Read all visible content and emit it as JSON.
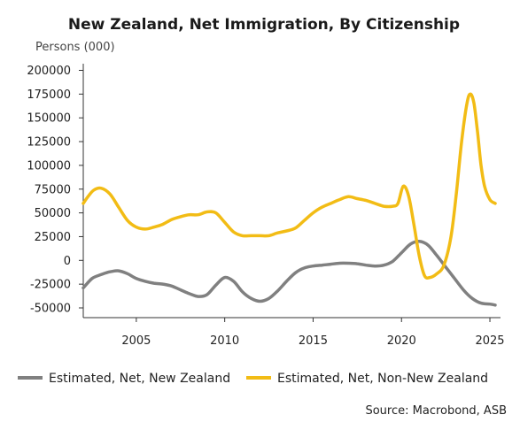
{
  "chart_data": {
    "type": "line",
    "title": "New Zealand, Net Immigration, By Citizenship",
    "ylabel": "Persons (000)",
    "xlabel": "",
    "ylim": [
      -50000,
      200000
    ],
    "xlim": [
      2002,
      2025.6
    ],
    "yticks": [
      200000,
      175000,
      150000,
      125000,
      100000,
      75000,
      50000,
      25000,
      0,
      -25000,
      -50000
    ],
    "xticks": [
      2005,
      2010,
      2015,
      2020,
      2025
    ],
    "grid": false,
    "legend_position": "bottom",
    "source": "Source: Macrobond, ASB",
    "series": [
      {
        "name": "Estimated, Net, New Zealand",
        "color": "#808080",
        "x": [
          2002.0,
          2002.5,
          2003.0,
          2003.5,
          2004.0,
          2004.5,
          2005.0,
          2005.5,
          2006.0,
          2006.5,
          2007.0,
          2007.5,
          2008.0,
          2008.5,
          2009.0,
          2009.5,
          2010.0,
          2010.5,
          2011.0,
          2011.5,
          2012.0,
          2012.5,
          2013.0,
          2013.5,
          2014.0,
          2014.5,
          2015.0,
          2015.5,
          2016.0,
          2016.5,
          2017.0,
          2017.5,
          2018.0,
          2018.5,
          2019.0,
          2019.5,
          2020.0,
          2020.5,
          2021.0,
          2021.5,
          2022.0,
          2022.5,
          2023.0,
          2023.5,
          2024.0,
          2024.5,
          2025.0,
          2025.3
        ],
        "y": [
          -29000,
          -19000,
          -15000,
          -12000,
          -11000,
          -14000,
          -19000,
          -22000,
          -24000,
          -25000,
          -27000,
          -31000,
          -35000,
          -38000,
          -36000,
          -26000,
          -18000,
          -22000,
          -33000,
          -40000,
          -43000,
          -40000,
          -32000,
          -22000,
          -13000,
          -8000,
          -6000,
          -5000,
          -4000,
          -3000,
          -3000,
          -3500,
          -5000,
          -6000,
          -5000,
          -1000,
          8000,
          17000,
          20000,
          16000,
          5000,
          -7000,
          -19000,
          -31000,
          -40000,
          -45000,
          -46000,
          -47000
        ]
      },
      {
        "name": "Estimated, Net, Non-New Zealand",
        "color": "#f2bc15",
        "x": [
          2002.0,
          2002.3,
          2002.6,
          2003.0,
          2003.5,
          2004.0,
          2004.5,
          2005.0,
          2005.5,
          2006.0,
          2006.5,
          2007.0,
          2007.5,
          2008.0,
          2008.5,
          2009.0,
          2009.5,
          2010.0,
          2010.5,
          2011.0,
          2011.5,
          2012.0,
          2012.5,
          2013.0,
          2013.5,
          2014.0,
          2014.5,
          2015.0,
          2015.5,
          2016.0,
          2016.5,
          2017.0,
          2017.5,
          2018.0,
          2018.5,
          2019.0,
          2019.5,
          2019.8,
          2020.1,
          2020.4,
          2020.7,
          2021.0,
          2021.3,
          2021.6,
          2022.0,
          2022.4,
          2022.8,
          2023.1,
          2023.4,
          2023.7,
          2023.9,
          2024.1,
          2024.3,
          2024.5,
          2024.7,
          2025.0,
          2025.3
        ],
        "y": [
          60000,
          68000,
          74000,
          76000,
          70000,
          56000,
          42000,
          35000,
          33000,
          35000,
          38000,
          43000,
          46000,
          48000,
          48000,
          51000,
          50000,
          40000,
          30000,
          26000,
          26000,
          26000,
          26000,
          29000,
          31000,
          34000,
          42000,
          50000,
          56000,
          60000,
          64000,
          67000,
          65000,
          63000,
          60000,
          57000,
          57000,
          60000,
          78000,
          68000,
          38000,
          5000,
          -16000,
          -18000,
          -14000,
          -5000,
          25000,
          70000,
          125000,
          165000,
          175000,
          165000,
          135000,
          100000,
          78000,
          64000,
          60000
        ]
      }
    ]
  }
}
